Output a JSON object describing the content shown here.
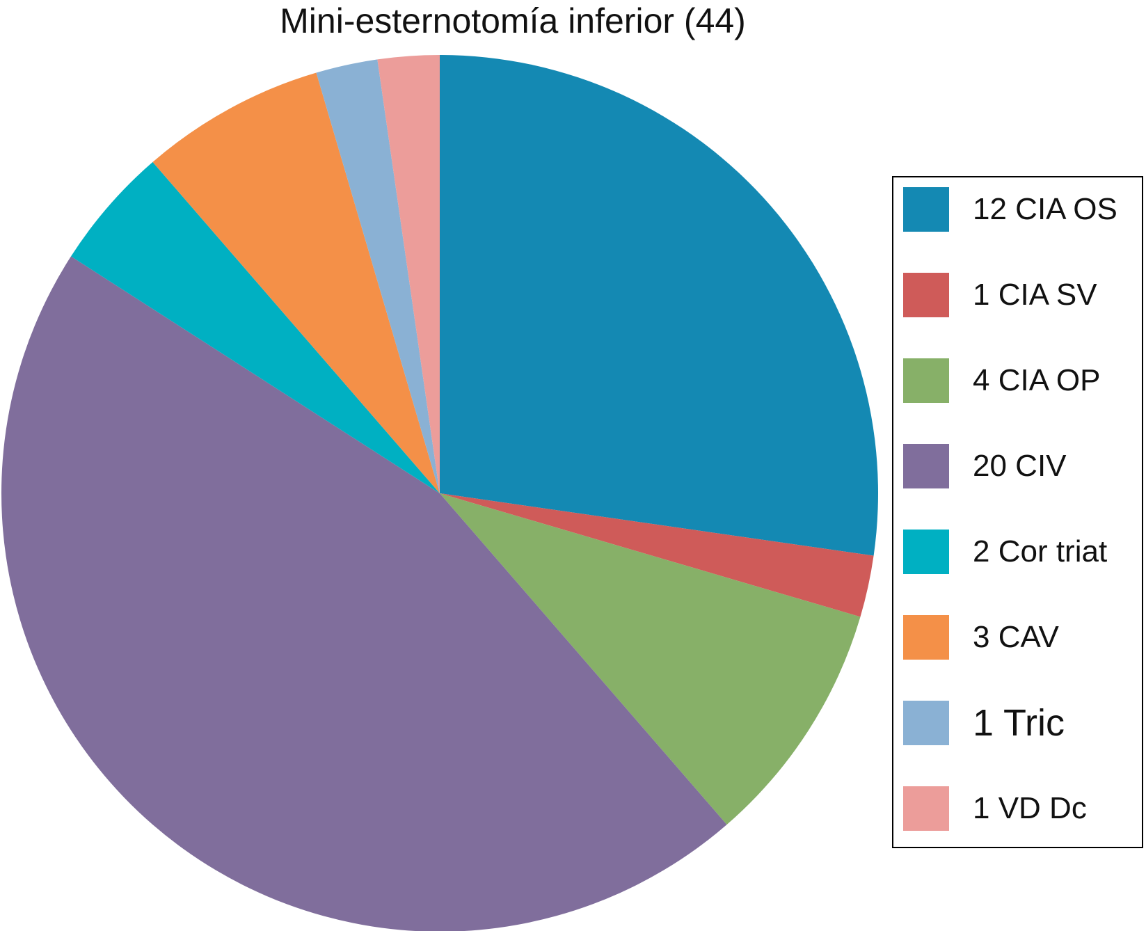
{
  "chart_data": {
    "type": "pie",
    "title": "Mini-esternotomía inferior (44)",
    "legend_position": "right",
    "slices": [
      {
        "label": "12 CIA OS",
        "value": 12,
        "color": "#1489b3"
      },
      {
        "label": "1 CIA SV",
        "value": 1,
        "color": "#cf5b59"
      },
      {
        "label": "4 CIA OP",
        "value": 4,
        "color": "#87b068"
      },
      {
        "label": "20 CIV",
        "value": 20,
        "color": "#806e9c"
      },
      {
        "label": "2 Cor triat",
        "value": 2,
        "color": "#00b0c2"
      },
      {
        "label": "3 CAV",
        "value": 3,
        "color": "#f49048"
      },
      {
        "label": "1 Tric",
        "value": 1,
        "color": "#8ab1d4"
      },
      {
        "label": "1 VD Dc",
        "value": 1,
        "color": "#ec9d9a"
      }
    ]
  }
}
